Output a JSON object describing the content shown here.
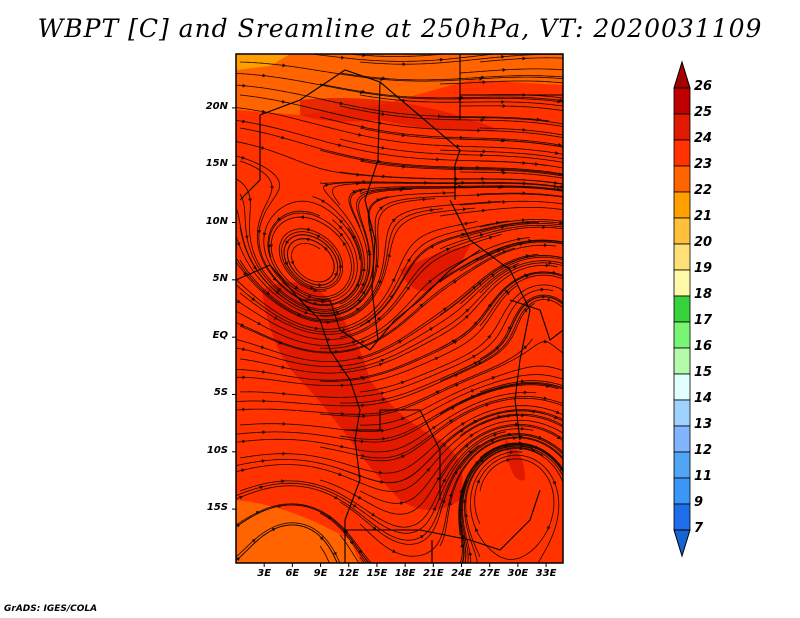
{
  "title": "WBPT [C] and Sreamline at 250hPa, VT: 2020031109",
  "footer": "GrADS: IGES/COLA",
  "map": {
    "lat_ticks": [
      "20N",
      "15N",
      "10N",
      "5N",
      "EQ",
      "5S",
      "10S",
      "15S"
    ],
    "lat_values": [
      20,
      15,
      10,
      5,
      0,
      -5,
      -10,
      -15
    ],
    "lon_ticks": [
      "3E",
      "6E",
      "9E",
      "12E",
      "15E",
      "18E",
      "21E",
      "24E",
      "27E",
      "30E",
      "33E"
    ],
    "lon_values": [
      3,
      6,
      9,
      12,
      15,
      18,
      21,
      24,
      27,
      30,
      33
    ],
    "lat_range": [
      -19.7,
      24.7
    ],
    "lon_range": [
      0,
      34.8
    ],
    "background_color": "#ff3200",
    "dark_color": "#e11900",
    "light_color": "#ff6400"
  },
  "colorbar": {
    "labels": [
      "26",
      "25",
      "24",
      "23",
      "22",
      "21",
      "20",
      "19",
      "18",
      "17",
      "16",
      "15",
      "14",
      "13",
      "12",
      "11",
      "9",
      "7"
    ],
    "colors": [
      "#c00000",
      "#e11900",
      "#ff3200",
      "#ff6400",
      "#ffa000",
      "#ffc03c",
      "#ffe078",
      "#fffaaa",
      "#37d23c",
      "#78f573",
      "#b4faaa",
      "#e1ffff",
      "#a0d2ff",
      "#82b4ff",
      "#50a5f5",
      "#3c96f5",
      "#1e6eeb"
    ],
    "over_color": "#a50000",
    "under_color": "#1464d2"
  }
}
